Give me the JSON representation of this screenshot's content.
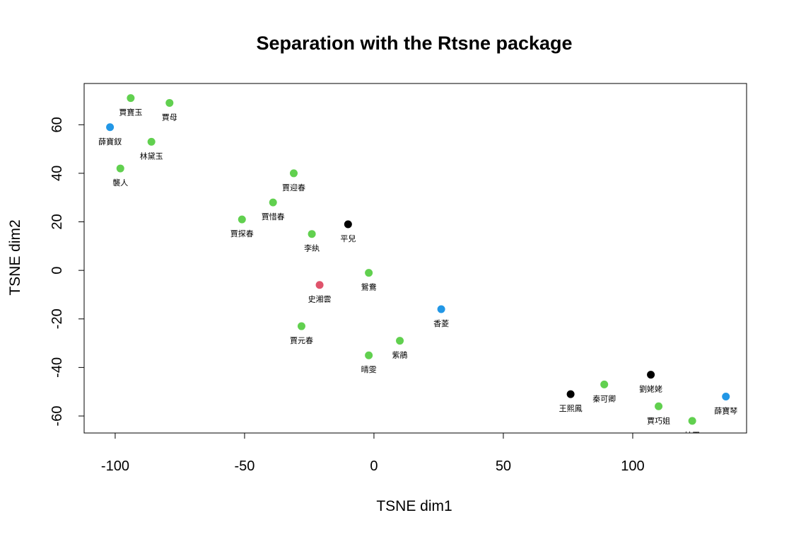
{
  "chart_data": {
    "type": "scatter",
    "title": "Separation with the Rtsne package",
    "xlabel": "TSNE dim1",
    "ylabel": "TSNE dim2",
    "xlim": [
      -112,
      144
    ],
    "ylim": [
      -67,
      77
    ],
    "x_ticks": [
      -100,
      -50,
      0,
      50,
      100
    ],
    "y_ticks": [
      -60,
      -40,
      -20,
      0,
      20,
      40,
      60
    ],
    "grid": false,
    "legend": "none",
    "colors": {
      "green": "#61D04F",
      "blue": "#2297E6",
      "black": "#000000",
      "red": "#DF536B"
    },
    "points": [
      {
        "label": "賈寶玉",
        "x": -94,
        "y": 71,
        "color": "green"
      },
      {
        "label": "賈母",
        "x": -79,
        "y": 69,
        "color": "green"
      },
      {
        "label": "薛寶釵",
        "x": -102,
        "y": 59,
        "color": "blue"
      },
      {
        "label": "林黛玉",
        "x": -86,
        "y": 53,
        "color": "green"
      },
      {
        "label": "襲人",
        "x": -98,
        "y": 42,
        "color": "green"
      },
      {
        "label": "賈迎春",
        "x": -31,
        "y": 40,
        "color": "green"
      },
      {
        "label": "賈惜春",
        "x": -39,
        "y": 28,
        "color": "green"
      },
      {
        "label": "賈探春",
        "x": -51,
        "y": 21,
        "color": "green"
      },
      {
        "label": "平兒",
        "x": -10,
        "y": 19,
        "color": "black"
      },
      {
        "label": "李紈",
        "x": -24,
        "y": 15,
        "color": "green"
      },
      {
        "label": "鴛鴦",
        "x": -2,
        "y": -1,
        "color": "green"
      },
      {
        "label": "史湘雲",
        "x": -21,
        "y": -6,
        "color": "red"
      },
      {
        "label": "香菱",
        "x": 26,
        "y": -16,
        "color": "blue"
      },
      {
        "label": "賈元春",
        "x": -28,
        "y": -23,
        "color": "green"
      },
      {
        "label": "紫鵑",
        "x": 10,
        "y": -29,
        "color": "green"
      },
      {
        "label": "晴雯",
        "x": -2,
        "y": -35,
        "color": "green"
      },
      {
        "label": "劉姥姥",
        "x": 107,
        "y": -43,
        "color": "black"
      },
      {
        "label": "秦可卿",
        "x": 89,
        "y": -47,
        "color": "green"
      },
      {
        "label": "王熙鳳",
        "x": 76,
        "y": -51,
        "color": "black"
      },
      {
        "label": "薛寶琴",
        "x": 136,
        "y": -52,
        "color": "blue"
      },
      {
        "label": "賈巧姐",
        "x": 110,
        "y": -56,
        "color": "green"
      },
      {
        "label": "妙玉",
        "x": 123,
        "y": -62,
        "color": "green"
      }
    ]
  }
}
